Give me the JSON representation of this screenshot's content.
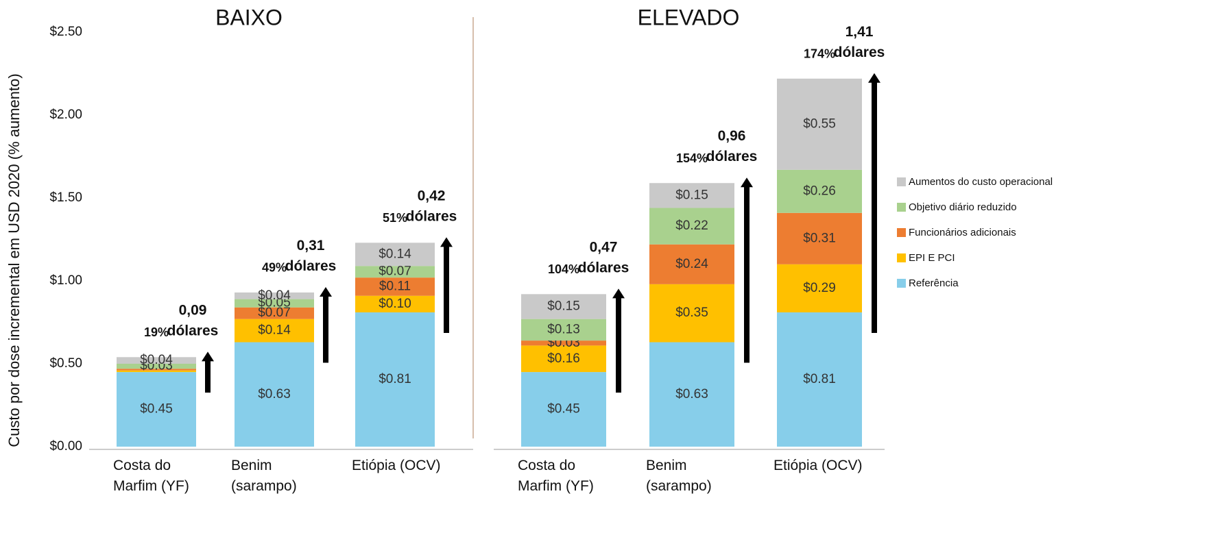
{
  "chart_data": [
    {
      "type": "bar",
      "stacked": true,
      "title": "BAIXO",
      "y_label": "Custo por dose incremental em USD 2020 (% aumento)",
      "categories": [
        [
          "Costa do",
          "Marfim (YF)"
        ],
        [
          "Benim",
          "(sarampo)"
        ],
        [
          "Etiópia (OCV)"
        ]
      ],
      "ylim": [
        0,
        2.5
      ],
      "yticks": [
        {
          "value": 0,
          "label": "$0.00"
        },
        {
          "value": 0.5,
          "label": "$0.50"
        },
        {
          "value": 1,
          "label": "$1.00"
        },
        {
          "value": 1.5,
          "label": "$1.50"
        },
        {
          "value": 2,
          "label": "$2.00"
        },
        {
          "value": 2.5,
          "label": "$2.50"
        }
      ],
      "series": [
        {
          "name": "Referência",
          "color": "#87ceea",
          "values": [
            0.45,
            0.63,
            0.81
          ],
          "value_labels": [
            "$0.45",
            "$0.63",
            "$0.81"
          ]
        },
        {
          "name": "EPI E PCI",
          "color": "#ffc000",
          "values": [
            0.01,
            0.14,
            0.1
          ],
          "value_labels": [
            null,
            "$0.14",
            "$0.10"
          ]
        },
        {
          "name": "Funcionários adicionais",
          "color": "#ed7d31",
          "values": [
            0.01,
            0.07,
            0.11
          ],
          "value_labels": [
            null,
            "$0.07",
            "$0.11"
          ]
        },
        {
          "name": "Objetivo diário reduzido",
          "color": "#a9d18e",
          "values": [
            0.03,
            0.05,
            0.07
          ],
          "value_labels": [
            "$0.03",
            "$0.05",
            "$0.07"
          ]
        },
        {
          "name": "Aumentos do custo operacional",
          "color": "#c9c9c9",
          "values": [
            0.04,
            0.04,
            0.14
          ],
          "value_labels": [
            "$0.04",
            "$0.04",
            "$0.14"
          ]
        }
      ],
      "percent_labels": [
        "19%",
        "49%",
        "51%"
      ],
      "increase_labels": [
        [
          "0,09",
          "dólares"
        ],
        [
          "0,31",
          "dólares"
        ],
        [
          "0,42",
          "dólares"
        ]
      ]
    },
    {
      "type": "bar",
      "stacked": true,
      "title": "ELEVADO",
      "categories": [
        [
          "Costa do",
          "Marfim (YF)"
        ],
        [
          "Benim",
          "(sarampo)"
        ],
        [
          "Etiópia (OCV)"
        ]
      ],
      "ylim": [
        0,
        2.5
      ],
      "legend": "right",
      "series": [
        {
          "name": "Referência",
          "color": "#87ceea",
          "values": [
            0.45,
            0.63,
            0.81
          ],
          "value_labels": [
            "$0.45",
            "$0.63",
            "$0.81"
          ]
        },
        {
          "name": "EPI E PCI",
          "color": "#ffc000",
          "values": [
            0.16,
            0.35,
            0.29
          ],
          "value_labels": [
            "$0.16",
            "$0.35",
            "$0.29"
          ]
        },
        {
          "name": "Funcionários adicionais",
          "color": "#ed7d31",
          "values": [
            0.03,
            0.24,
            0.31
          ],
          "value_labels": [
            "$0.03",
            "$0.24",
            "$0.31"
          ]
        },
        {
          "name": "Objetivo diário reduzido",
          "color": "#a9d18e",
          "values": [
            0.13,
            0.22,
            0.26
          ],
          "value_labels": [
            "$0.13",
            "$0.22",
            "$0.26"
          ]
        },
        {
          "name": "Aumentos do custo operacional",
          "color": "#c9c9c9",
          "values": [
            0.15,
            0.15,
            0.55
          ],
          "value_labels": [
            "$0.15",
            "$0.15",
            "$0.55"
          ]
        }
      ],
      "percent_labels": [
        "104%",
        "154%",
        "174%"
      ],
      "increase_labels": [
        [
          "0,47",
          "dólares"
        ],
        [
          "0,96",
          "dólares"
        ],
        [
          "1,41",
          "dólares"
        ]
      ]
    }
  ]
}
